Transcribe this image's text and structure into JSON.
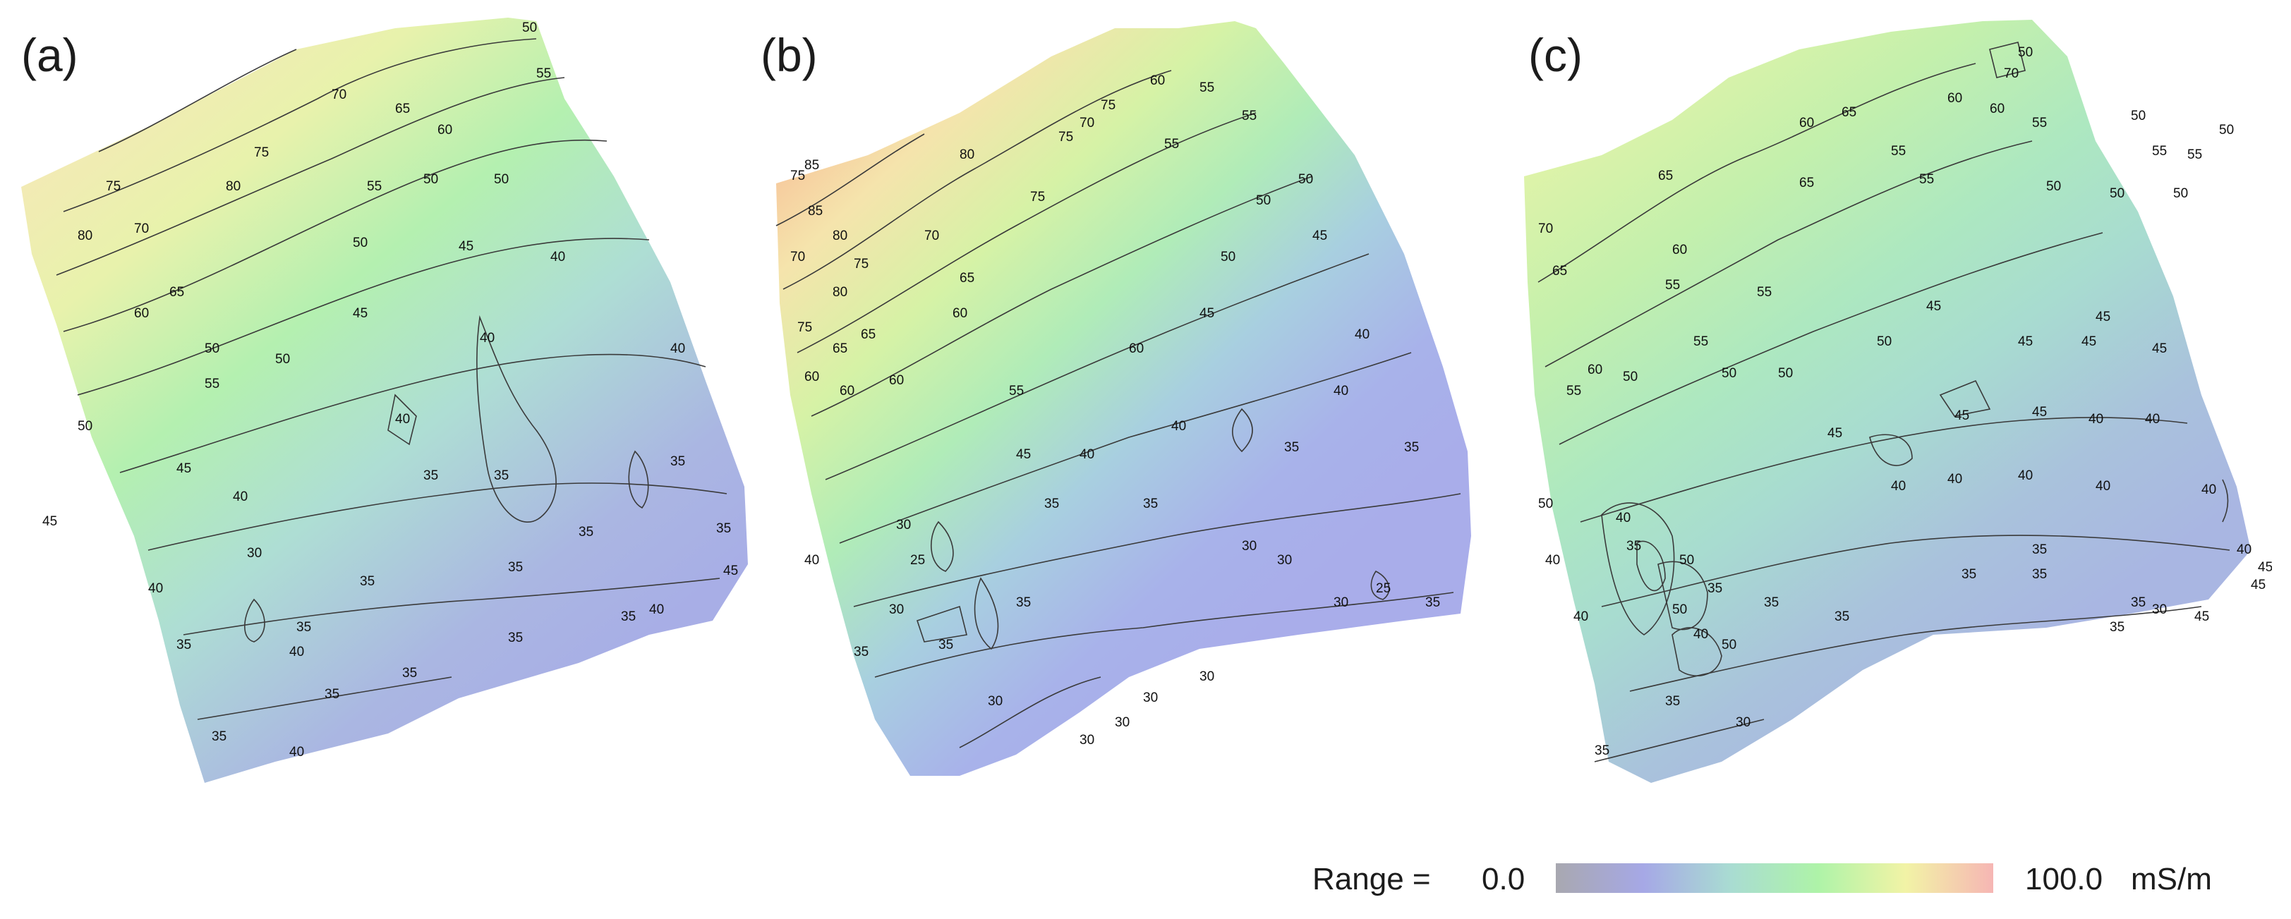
{
  "panels": [
    {
      "label": "(a)",
      "contour_labels": [
        "50",
        "55",
        "70",
        "65",
        "60",
        "75",
        "80",
        "45",
        "40",
        "35",
        "30"
      ]
    },
    {
      "label": "(b)",
      "contour_labels": [
        "85",
        "80",
        "75",
        "70",
        "65",
        "60",
        "55",
        "50",
        "45",
        "40",
        "35",
        "30",
        "25"
      ]
    },
    {
      "label": "(c)",
      "contour_labels": [
        "70",
        "65",
        "60",
        "55",
        "50",
        "45",
        "40",
        "35",
        "30"
      ]
    }
  ],
  "legend": {
    "prefix": "Range =",
    "min": "0.0",
    "max": "100.0",
    "unit": "mS/m",
    "colors": [
      "#a8a8b0",
      "#a6a8e6",
      "#a9dcd2",
      "#aef3a8",
      "#f2f3a6",
      "#f6b6b4"
    ]
  }
}
